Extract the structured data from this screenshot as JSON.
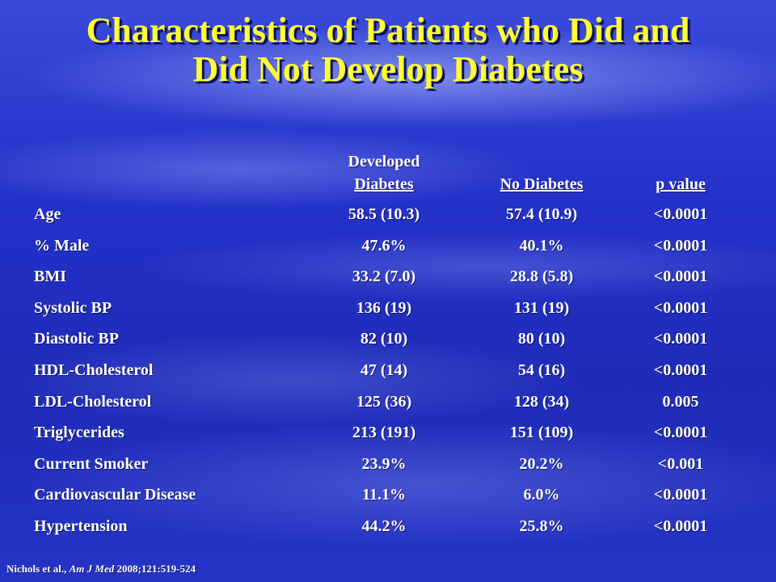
{
  "title": {
    "line1": "Characteristics of Patients who Did and",
    "line2": "Did Not Develop Diabetes"
  },
  "table": {
    "headers": {
      "developed_line1": "Developed",
      "developed_line2": "Diabetes",
      "no_diabetes": "No Diabetes",
      "p_value": "p value"
    },
    "rows": [
      {
        "label": "Age",
        "developed": "58.5 (10.3)",
        "no_diabetes": "57.4 (10.9)",
        "p": "<0.0001"
      },
      {
        "label": "% Male",
        "developed": "47.6%",
        "no_diabetes": "40.1%",
        "p": "<0.0001"
      },
      {
        "label": "BMI",
        "developed": "33.2 (7.0)",
        "no_diabetes": "28.8 (5.8)",
        "p": "<0.0001"
      },
      {
        "label": "Systolic BP",
        "developed": "136 (19)",
        "no_diabetes": "131 (19)",
        "p": "<0.0001"
      },
      {
        "label": "Diastolic BP",
        "developed": "82 (10)",
        "no_diabetes": "80 (10)",
        "p": "<0.0001"
      },
      {
        "label": "HDL-Cholesterol",
        "developed": "47 (14)",
        "no_diabetes": "54 (16)",
        "p": "<0.0001"
      },
      {
        "label": "LDL-Cholesterol",
        "developed": "125 (36)",
        "no_diabetes": "128 (34)",
        "p": "0.005"
      },
      {
        "label": "Triglycerides",
        "developed": "213 (191)",
        "no_diabetes": "151 (109)",
        "p": "<0.0001"
      },
      {
        "label": "Current Smoker",
        "developed": "23.9%",
        "no_diabetes": "20.2%",
        "p": "<0.001"
      },
      {
        "label": "Cardiovascular Disease",
        "developed": "11.1%",
        "no_diabetes": "6.0%",
        "p": "<0.0001"
      },
      {
        "label": "Hypertension",
        "developed": "44.2%",
        "no_diabetes": "25.8%",
        "p": "<0.0001"
      }
    ]
  },
  "citation": {
    "authors": "Nichols et al., ",
    "journal": "Am J Med",
    "details": " 2008;121:519-524"
  },
  "colors": {
    "title": "#ffff33",
    "text": "#ffffff",
    "background": "#1f2dbd"
  }
}
